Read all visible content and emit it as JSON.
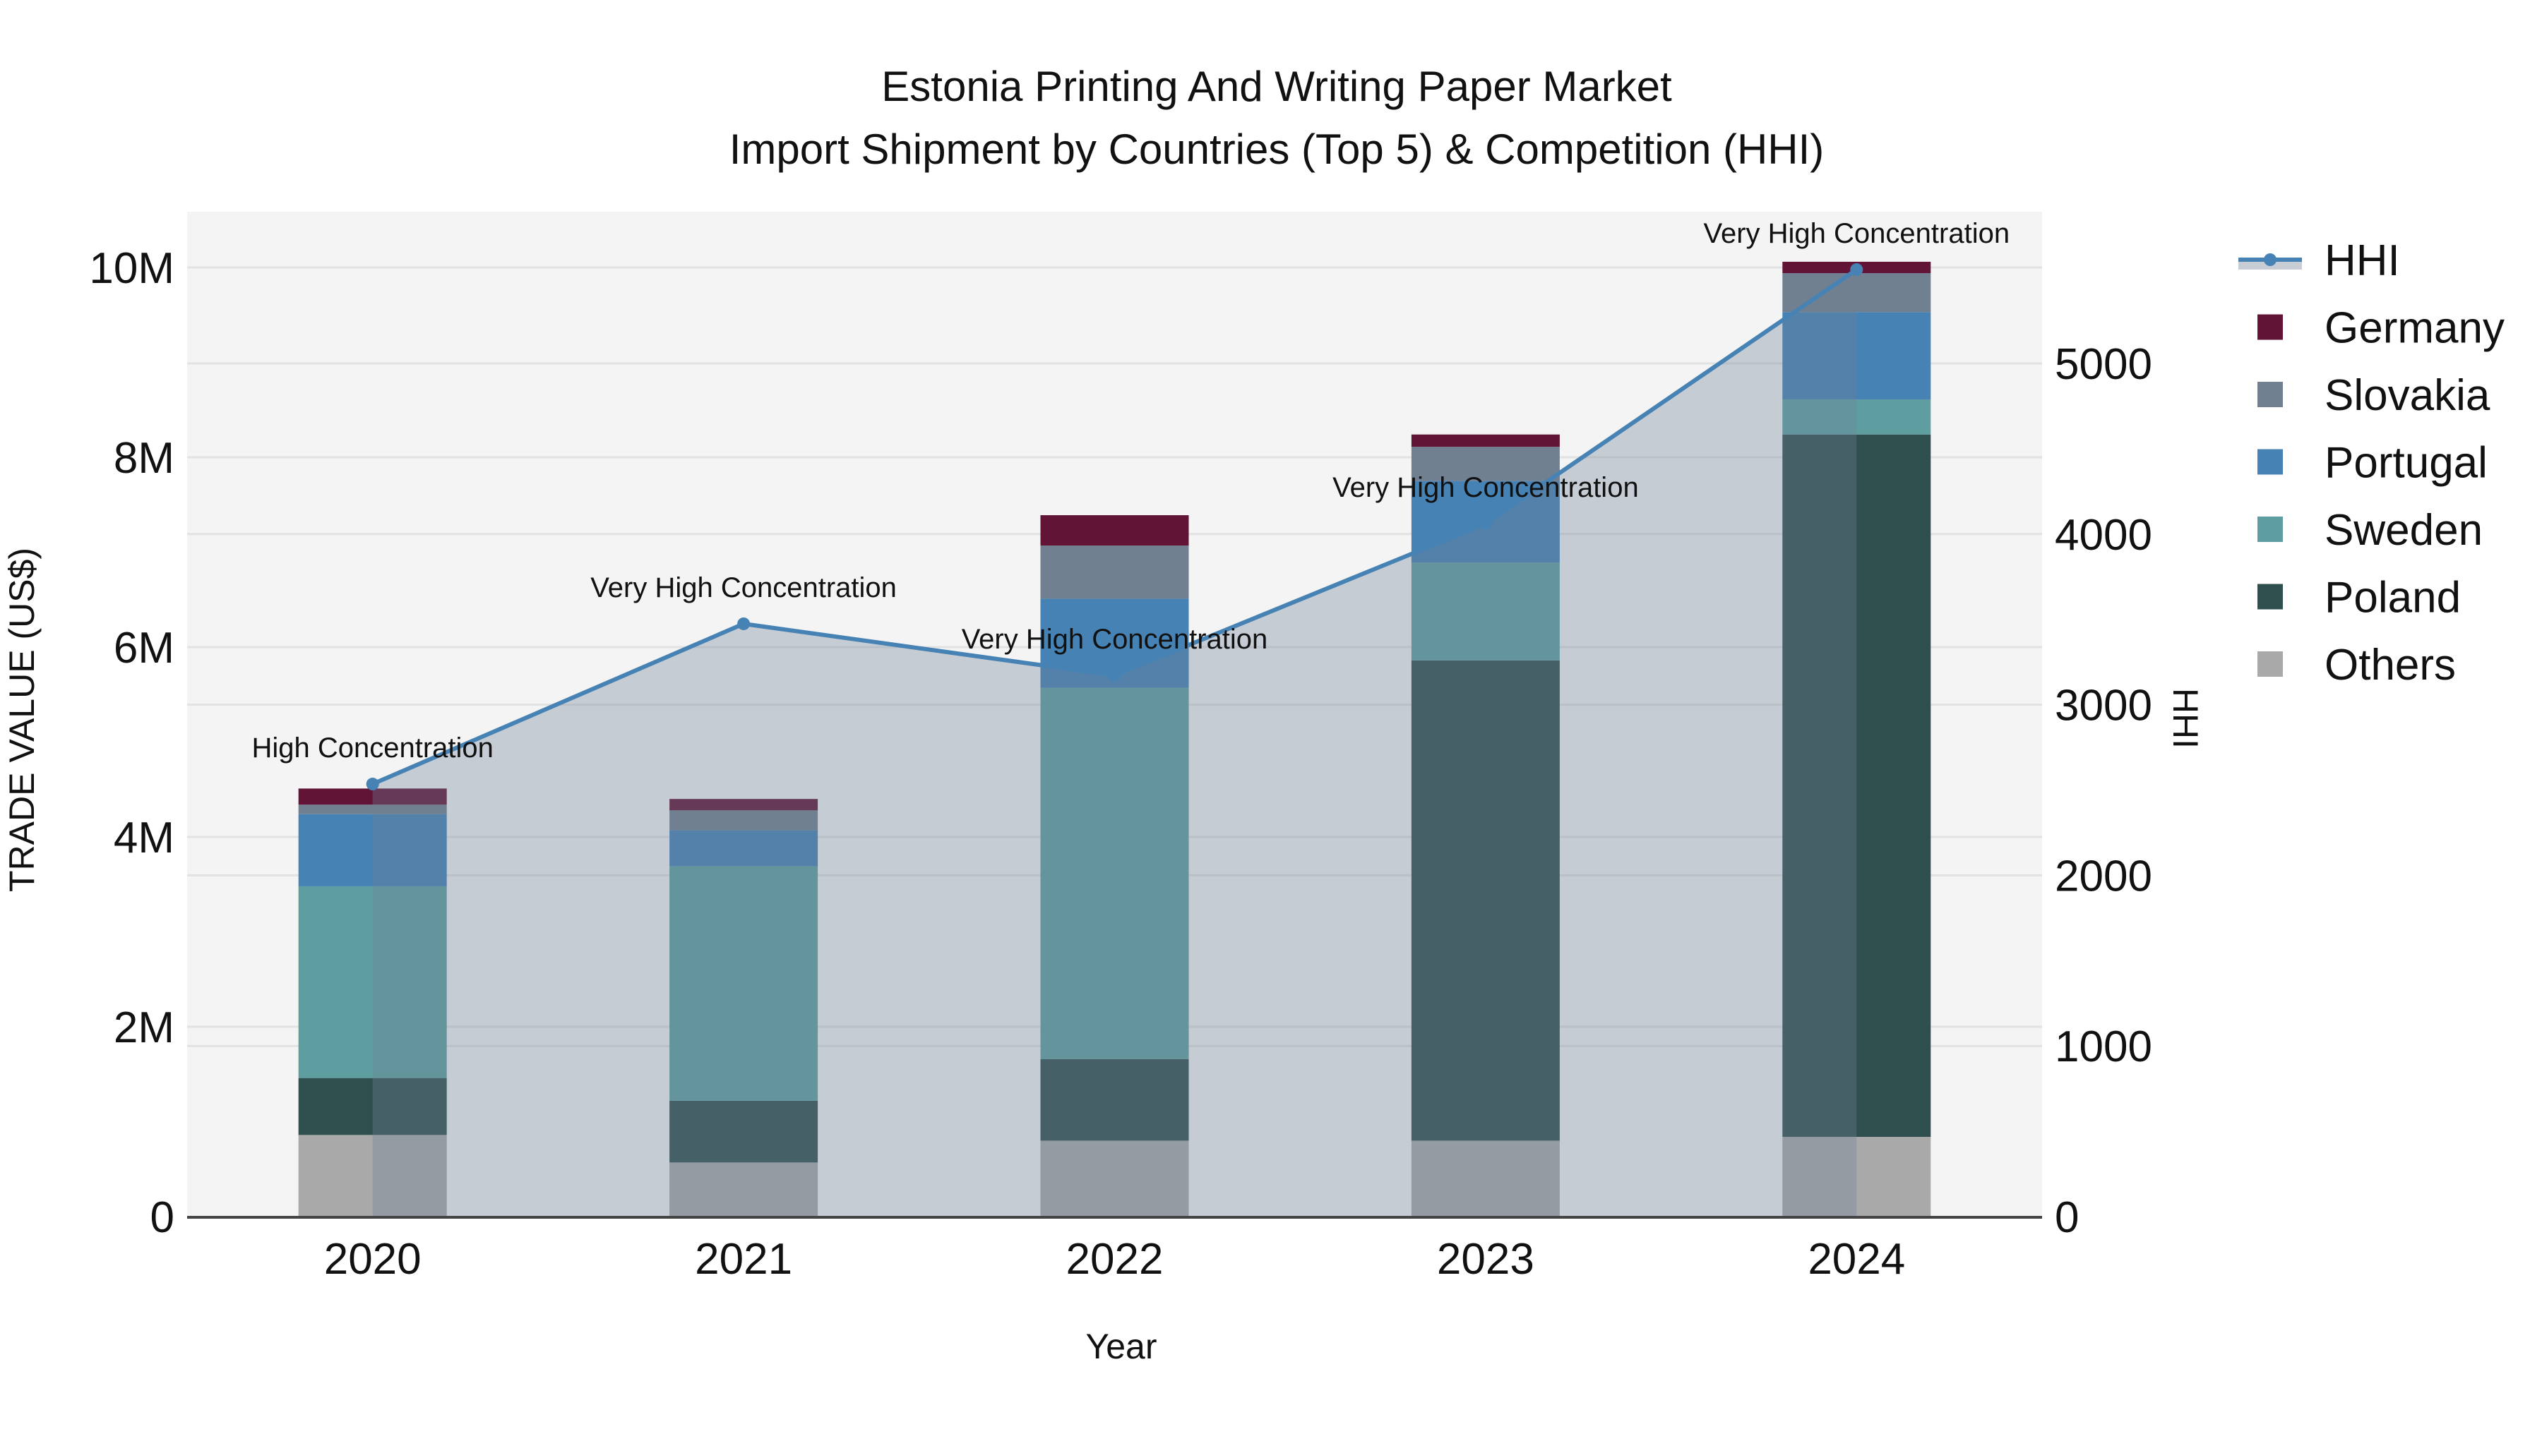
{
  "chart_data": {
    "type": "bar",
    "title": "Estonia Printing And Writing Paper Market",
    "subtitle": "Import Shipment by Countries (Top 5) & Competition (HHI)",
    "xlabel": "Year",
    "ylabel": "TRADE VALUE (US$)",
    "y2label": "HHI",
    "categories": [
      "2020",
      "2021",
      "2022",
      "2023",
      "2024"
    ],
    "ylim": [
      0,
      10600000
    ],
    "y_ticks": [
      0,
      2000000,
      4000000,
      6000000,
      8000000,
      10000000
    ],
    "y_tick_labels": [
      "0",
      "2M",
      "4M",
      "6M",
      "8M",
      "10M"
    ],
    "y2lim": [
      0,
      5900
    ],
    "y2_ticks": [
      0,
      1000,
      2000,
      3000,
      4000,
      5000
    ],
    "y2_tick_labels": [
      "0",
      "1000",
      "2000",
      "3000",
      "4000",
      "5000"
    ],
    "stacked": true,
    "grid": true,
    "legend_position": "right",
    "series": [
      {
        "name": "Others",
        "color": "#A9A9A9",
        "values": [
          860000,
          570000,
          800000,
          800000,
          840000
        ]
      },
      {
        "name": "Poland",
        "color": "#2F4F4F",
        "values": [
          600000,
          650000,
          860000,
          5060000,
          7400000
        ]
      },
      {
        "name": "Sweden",
        "color": "#5F9EA0",
        "values": [
          2020000,
          2470000,
          3910000,
          1030000,
          370000
        ]
      },
      {
        "name": "Portugal",
        "color": "#4682B4",
        "values": [
          760000,
          380000,
          940000,
          860000,
          920000
        ]
      },
      {
        "name": "Slovakia",
        "color": "#708090",
        "values": [
          100000,
          210000,
          560000,
          360000,
          410000
        ]
      },
      {
        "name": "Germany",
        "color": "#621436",
        "values": [
          170000,
          120000,
          320000,
          130000,
          120000
        ]
      }
    ],
    "line_series": {
      "name": "HHI",
      "axis": "y2",
      "color": "#4682B4",
      "fill": "rgba(112,128,150,0.35)",
      "values": [
        2535,
        3474,
        3172,
        4061,
        5550
      ],
      "annotations": [
        "High Concentration",
        "Very High Concentration",
        "Very High Concentration",
        "Very High Concentration",
        "Very High Concentration"
      ]
    }
  },
  "legend": {
    "items": [
      {
        "label": "HHI",
        "color": "#4682B4",
        "kind": "line"
      },
      {
        "label": "Germany",
        "color": "#621436",
        "kind": "box"
      },
      {
        "label": "Slovakia",
        "color": "#708090",
        "kind": "box"
      },
      {
        "label": "Portugal",
        "color": "#4682B4",
        "kind": "box"
      },
      {
        "label": "Sweden",
        "color": "#5F9EA0",
        "kind": "box"
      },
      {
        "label": "Poland",
        "color": "#2F4F4F",
        "kind": "box"
      },
      {
        "label": "Others",
        "color": "#A9A9A9",
        "kind": "box"
      }
    ]
  }
}
